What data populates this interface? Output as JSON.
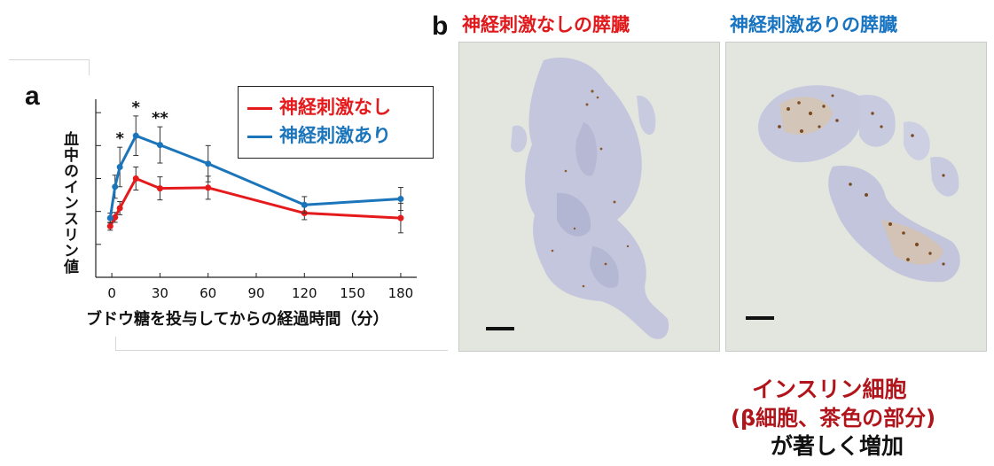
{
  "panel_a": {
    "label": "a"
  },
  "panel_b": {
    "label": "b",
    "title_left": "神経刺激なしの膵臓",
    "title_right": "神経刺激ありの膵臓",
    "title_left_color": "#e0191c",
    "title_right_color": "#1874c1"
  },
  "annotation": {
    "line1": "インスリン細胞",
    "line2": "(β細胞、茶色の部分)",
    "line3": "が著しく増加",
    "color_red": "#b1151b",
    "color_black": "#111111"
  },
  "chart_data": {
    "type": "line",
    "x": [
      -1,
      2,
      5,
      15,
      30,
      60,
      120,
      180
    ],
    "xticks": [
      0,
      30,
      60,
      90,
      120,
      150,
      180
    ],
    "xlim": [
      -10,
      190
    ],
    "ylim": [
      0,
      6
    ],
    "xlabel": "ブドウ糖を投与してからの経過時間（分）",
    "ylabel": "血中のインスリン値",
    "legend_position": "top-right",
    "grid": false,
    "series": [
      {
        "name": "神経刺激なし",
        "color": "#e41a1c",
        "values": [
          1.55,
          1.82,
          2.1,
          3.0,
          2.7,
          2.72,
          1.95,
          1.8
        ],
        "err": [
          0.12,
          0.15,
          0.2,
          0.35,
          0.35,
          0.35,
          0.2,
          0.45
        ]
      },
      {
        "name": "神経刺激あり",
        "color": "#1b75bb",
        "values": [
          1.8,
          2.75,
          3.35,
          4.3,
          4.02,
          3.45,
          2.2,
          2.38
        ],
        "err": [
          0.15,
          0.35,
          0.6,
          0.6,
          0.55,
          0.55,
          0.25,
          0.35
        ]
      }
    ],
    "significance": [
      {
        "x": 5,
        "label": "*"
      },
      {
        "x": 15,
        "label": "*"
      },
      {
        "x": 30,
        "label": "**"
      }
    ]
  }
}
